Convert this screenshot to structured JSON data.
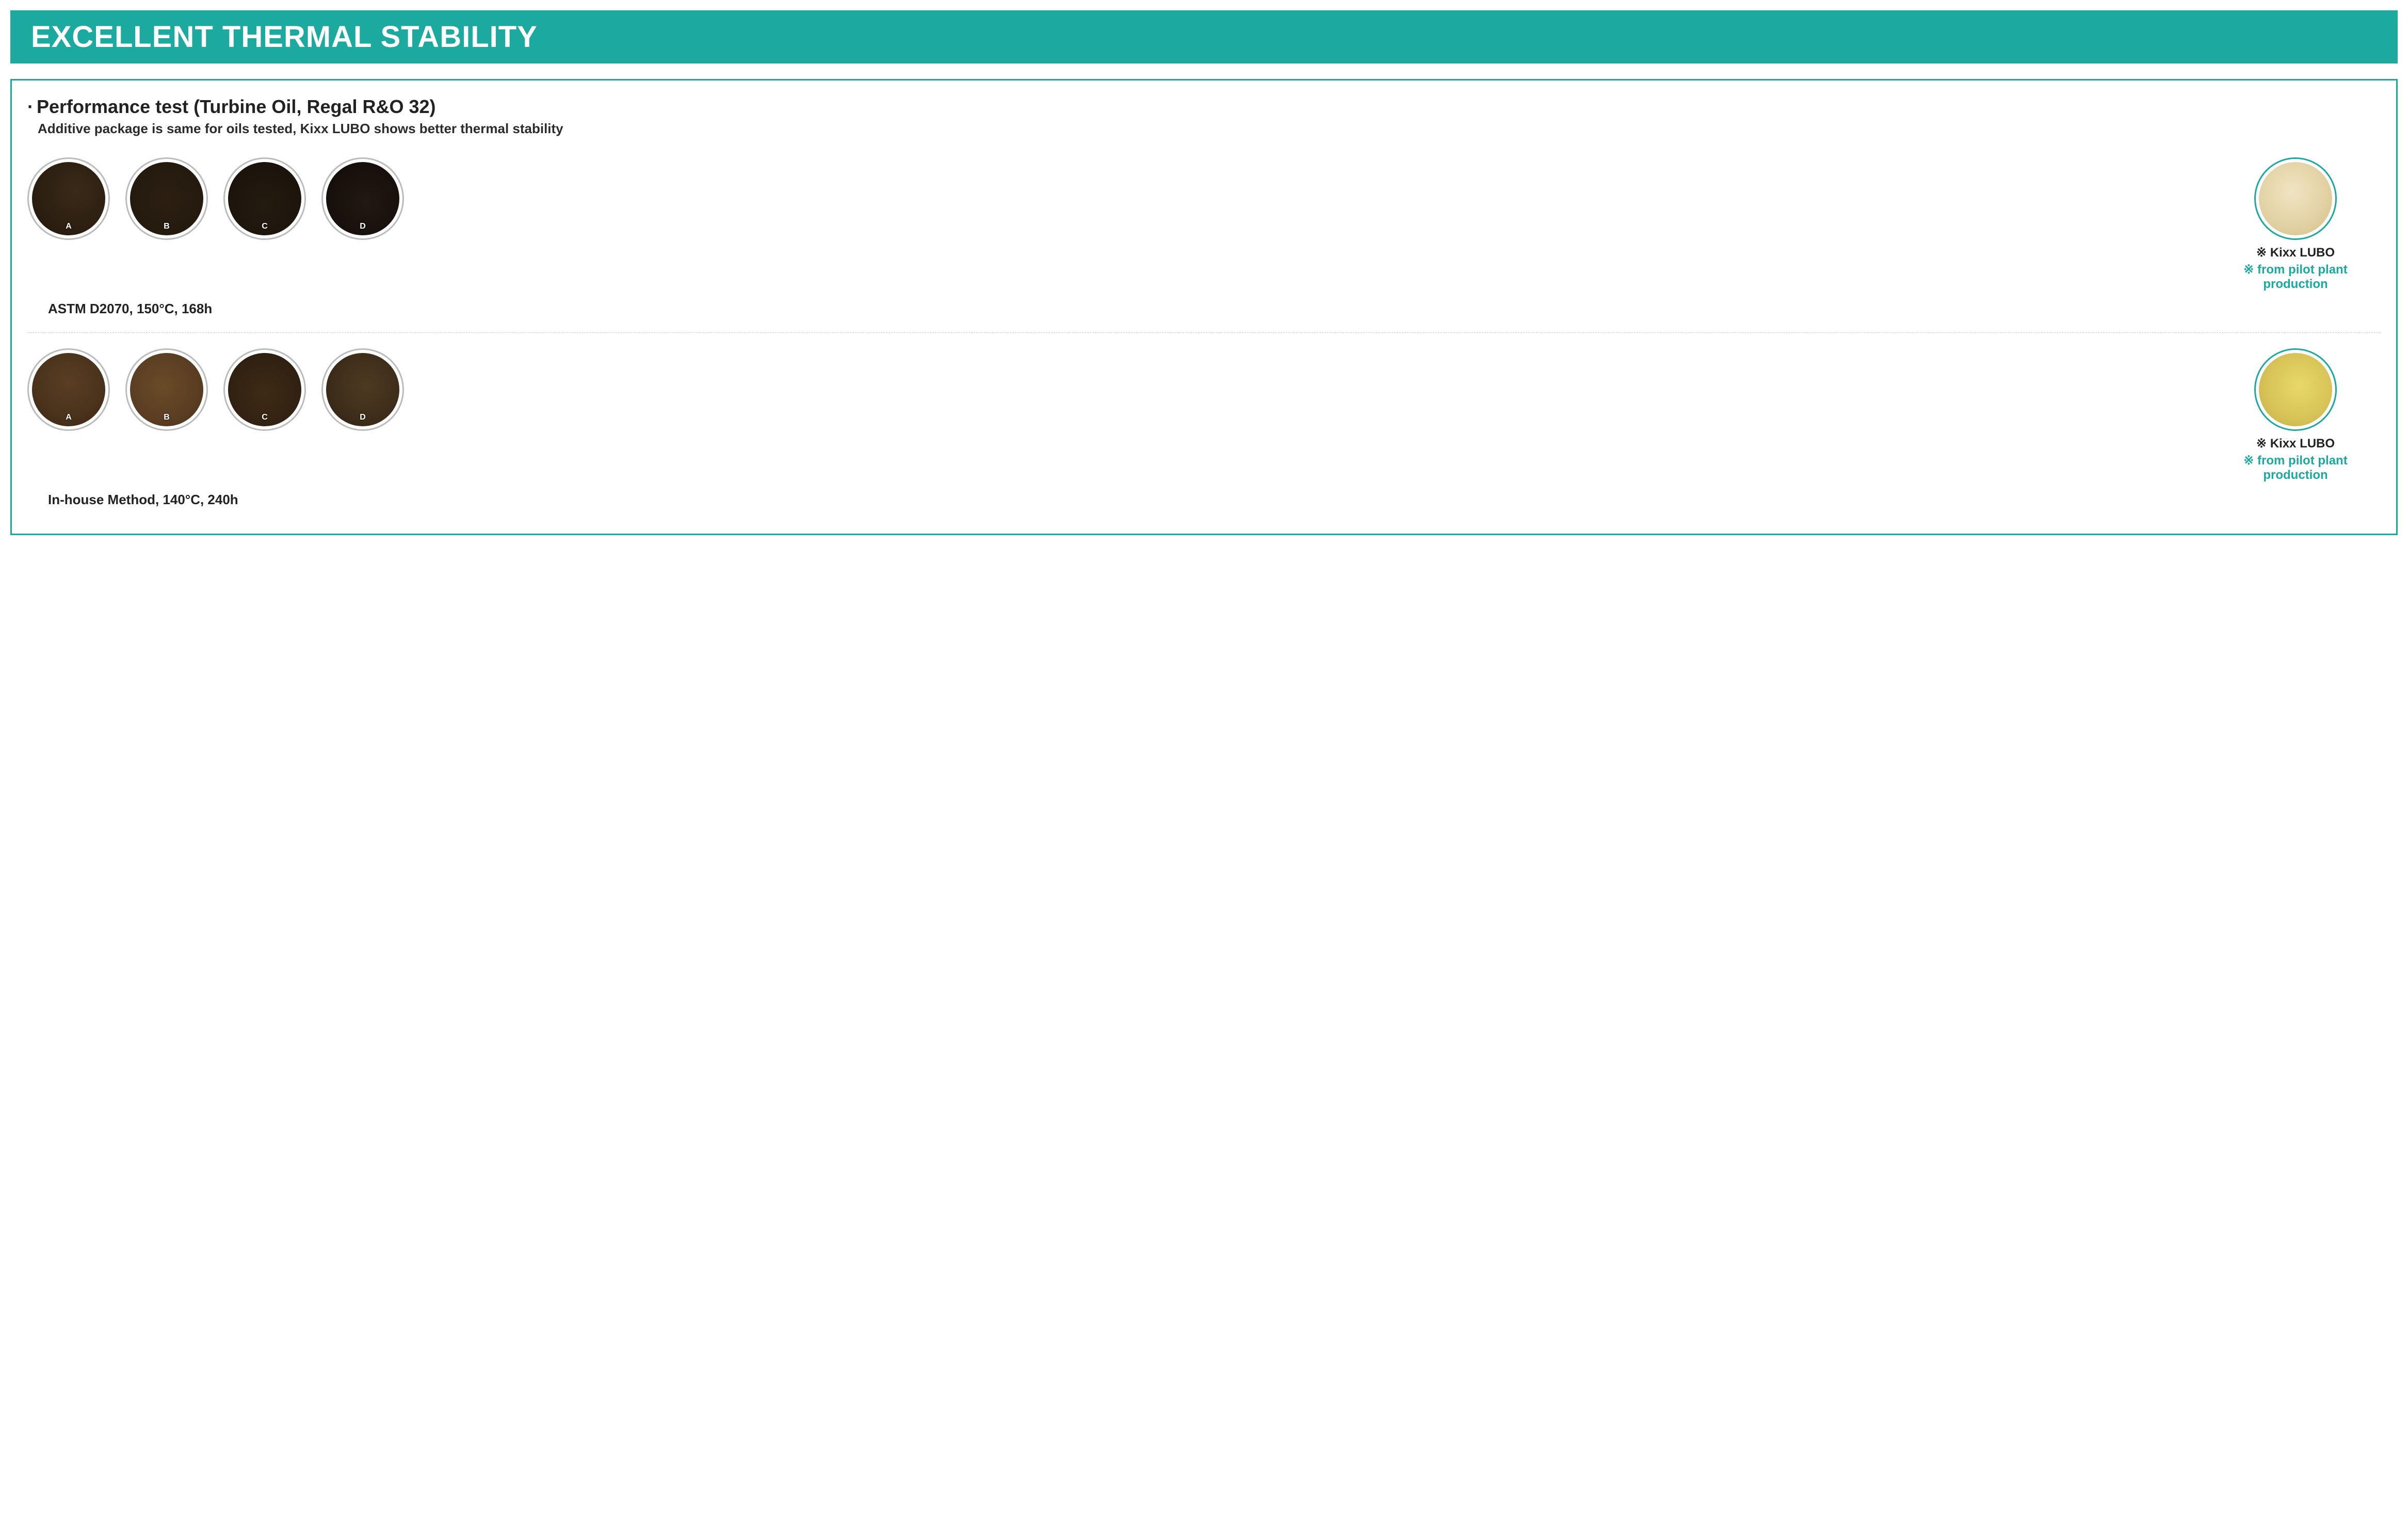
{
  "title": "EXCELLENT THERMAL STABILITY",
  "subtitle": "Performance test (Turbine Oil, Regal R&O 32)",
  "subdesc": "Additive package is same for oils tested, Kixx LUBO shows better thermal stability",
  "rows": [
    {
      "caption": "ASTM D2070, 150°C, 168h",
      "samples": [
        {
          "label": "A",
          "bg": "radial-gradient(circle at 60% 40%, #3a2a18 0%, #2a1d10 70%, #1e140a 100%)",
          "spot": "#5a4422"
        },
        {
          "label": "B",
          "bg": "radial-gradient(circle, #2c1f12 0%, #241a0e 70%, #1a120a 100%)",
          "spot": ""
        },
        {
          "label": "C",
          "bg": "radial-gradient(circle at 50% 60%, #241a10 0%, #1c140c 70%, #120c06 100%)",
          "spot": ""
        },
        {
          "label": "D",
          "bg": "radial-gradient(circle at 55% 55%, #221812 0%, #18100c 60%, #0e0a08 100%)",
          "spot": ""
        }
      ],
      "highlight": {
        "bg": "radial-gradient(circle at 45% 40%, #f0e4c2 0%, #e4d4a8 50%, #d4c088 100%)",
        "title": "※ Kixx LUBO",
        "note": "※ from pilot plant production"
      }
    },
    {
      "caption": "In-house Method, 140°C, 240h",
      "samples": [
        {
          "label": "A",
          "bg": "radial-gradient(circle at 50% 40%, #5a3e22 0%, #4a321c 60%, #3a2614 100%)",
          "spot": "#2a1c10"
        },
        {
          "label": "B",
          "bg": "radial-gradient(circle at 45% 45%, #6a4a28 0%, #5a3e22 60%, #46301a 100%)",
          "spot": "#2e2012"
        },
        {
          "label": "C",
          "bg": "radial-gradient(circle at 50% 55%, #3e2a16 0%, #322212 60%, #261a0e 100%)",
          "spot": ""
        },
        {
          "label": "D",
          "bg": "radial-gradient(circle at 55% 45%, #4e3a22 0%, #3e2e1a 55%, #2e2214 100%)",
          "spot": ""
        }
      ],
      "highlight": {
        "bg": "radial-gradient(circle at 55% 45%, #e8d86a 0%, #d8c458 55%, #c4ae44 100%)",
        "title": "※ Kixx LUBO",
        "note": "※ from pilot plant production"
      }
    }
  ],
  "colors": {
    "accent": "#1ba9a0",
    "text": "#222222"
  }
}
